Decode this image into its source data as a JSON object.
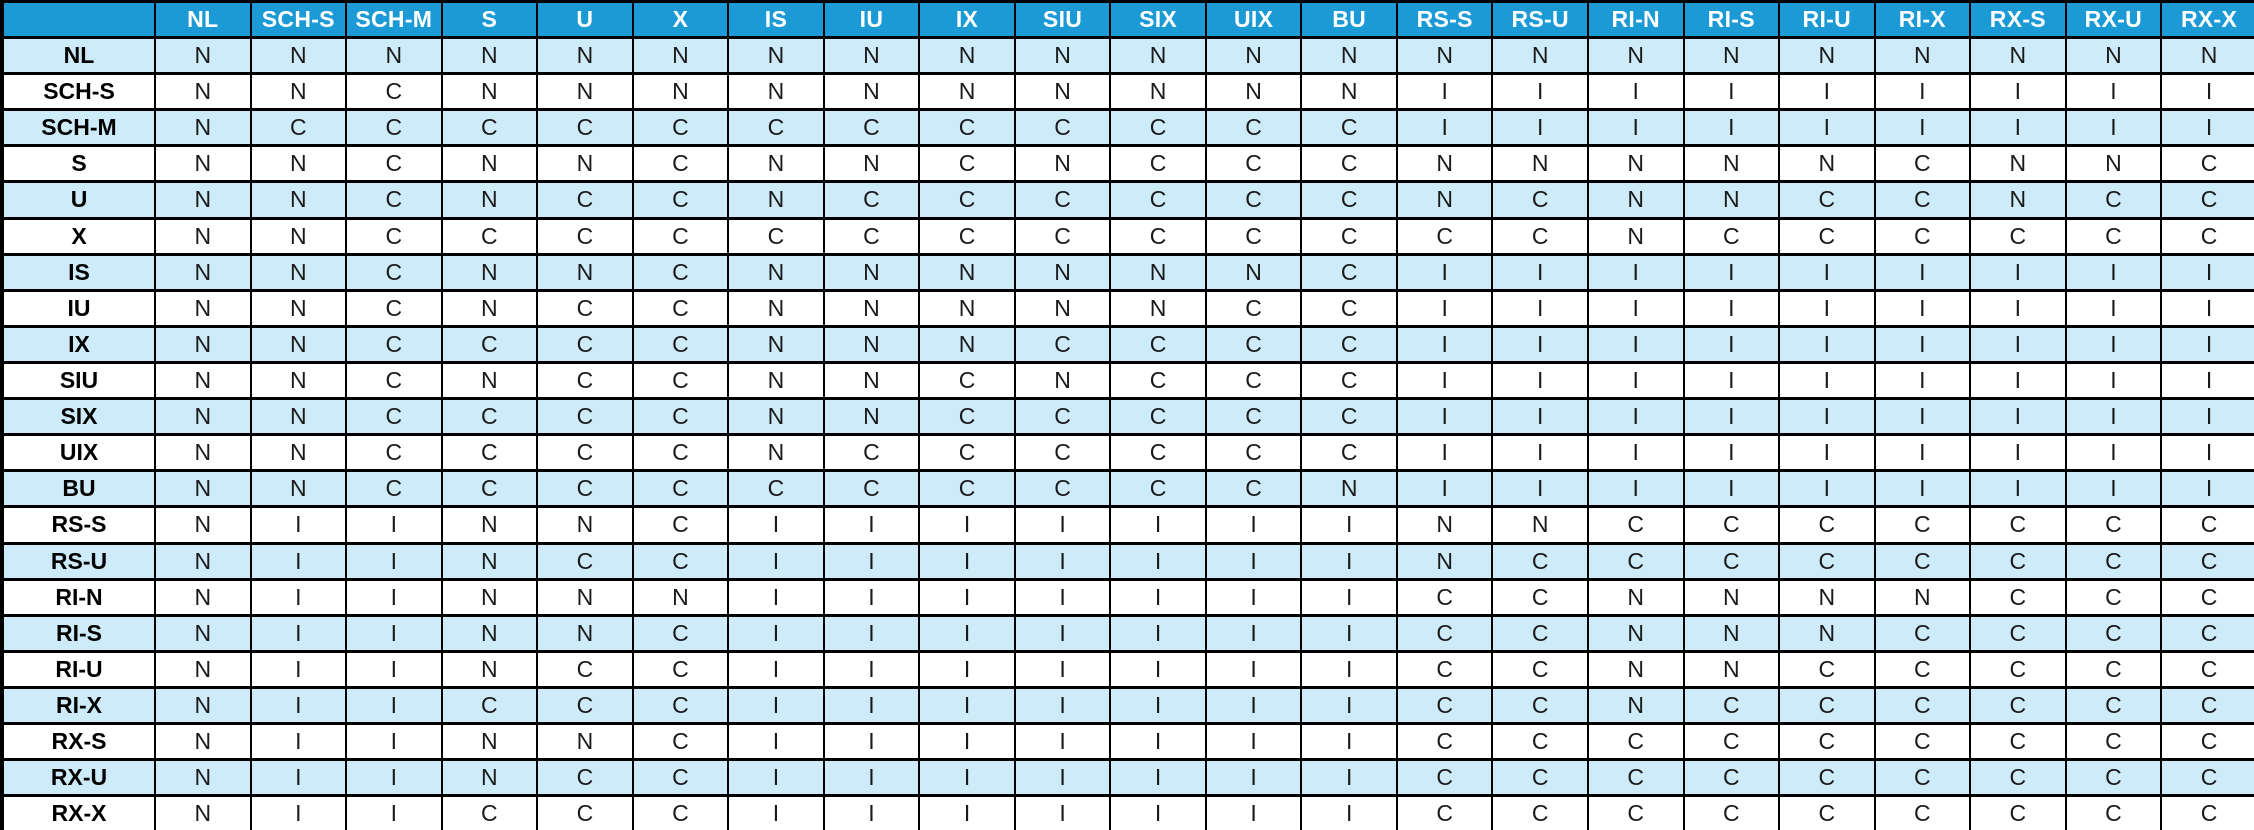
{
  "table": {
    "corner_label": "",
    "columns": [
      "NL",
      "SCH-S",
      "SCH-M",
      "S",
      "U",
      "X",
      "IS",
      "IU",
      "IX",
      "SIU",
      "SIX",
      "UIX",
      "BU",
      "RS-S",
      "RS-U",
      "RI-N",
      "RI-S",
      "RI-U",
      "RI-X",
      "RX-S",
      "RX-U",
      "RX-X"
    ],
    "rows": [
      {
        "label": "NL",
        "values": [
          "N",
          "N",
          "N",
          "N",
          "N",
          "N",
          "N",
          "N",
          "N",
          "N",
          "N",
          "N",
          "N",
          "N",
          "N",
          "N",
          "N",
          "N",
          "N",
          "N",
          "N",
          "N"
        ]
      },
      {
        "label": "SCH-S",
        "values": [
          "N",
          "N",
          "C",
          "N",
          "N",
          "N",
          "N",
          "N",
          "N",
          "N",
          "N",
          "N",
          "N",
          "I",
          "I",
          "I",
          "I",
          "I",
          "I",
          "I",
          "I",
          "I"
        ]
      },
      {
        "label": "SCH-M",
        "values": [
          "N",
          "C",
          "C",
          "C",
          "C",
          "C",
          "C",
          "C",
          "C",
          "C",
          "C",
          "C",
          "C",
          "I",
          "I",
          "I",
          "I",
          "I",
          "I",
          "I",
          "I",
          "I"
        ]
      },
      {
        "label": "S",
        "values": [
          "N",
          "N",
          "C",
          "N",
          "N",
          "C",
          "N",
          "N",
          "C",
          "N",
          "C",
          "C",
          "C",
          "N",
          "N",
          "N",
          "N",
          "N",
          "C",
          "N",
          "N",
          "C"
        ]
      },
      {
        "label": "U",
        "values": [
          "N",
          "N",
          "C",
          "N",
          "C",
          "C",
          "N",
          "C",
          "C",
          "C",
          "C",
          "C",
          "C",
          "N",
          "C",
          "N",
          "N",
          "C",
          "C",
          "N",
          "C",
          "C"
        ]
      },
      {
        "label": "X",
        "values": [
          "N",
          "N",
          "C",
          "C",
          "C",
          "C",
          "C",
          "C",
          "C",
          "C",
          "C",
          "C",
          "C",
          "C",
          "C",
          "N",
          "C",
          "C",
          "C",
          "C",
          "C",
          "C"
        ]
      },
      {
        "label": "IS",
        "values": [
          "N",
          "N",
          "C",
          "N",
          "N",
          "C",
          "N",
          "N",
          "N",
          "N",
          "N",
          "N",
          "C",
          "I",
          "I",
          "I",
          "I",
          "I",
          "I",
          "I",
          "I",
          "I"
        ]
      },
      {
        "label": "IU",
        "values": [
          "N",
          "N",
          "C",
          "N",
          "C",
          "C",
          "N",
          "N",
          "N",
          "N",
          "N",
          "C",
          "C",
          "I",
          "I",
          "I",
          "I",
          "I",
          "I",
          "I",
          "I",
          "I"
        ]
      },
      {
        "label": "IX",
        "values": [
          "N",
          "N",
          "C",
          "C",
          "C",
          "C",
          "N",
          "N",
          "N",
          "C",
          "C",
          "C",
          "C",
          "I",
          "I",
          "I",
          "I",
          "I",
          "I",
          "I",
          "I",
          "I"
        ]
      },
      {
        "label": "SIU",
        "values": [
          "N",
          "N",
          "C",
          "N",
          "C",
          "C",
          "N",
          "N",
          "C",
          "N",
          "C",
          "C",
          "C",
          "I",
          "I",
          "I",
          "I",
          "I",
          "I",
          "I",
          "I",
          "I"
        ]
      },
      {
        "label": "SIX",
        "values": [
          "N",
          "N",
          "C",
          "C",
          "C",
          "C",
          "N",
          "N",
          "C",
          "C",
          "C",
          "C",
          "C",
          "I",
          "I",
          "I",
          "I",
          "I",
          "I",
          "I",
          "I",
          "I"
        ]
      },
      {
        "label": "UIX",
        "values": [
          "N",
          "N",
          "C",
          "C",
          "C",
          "C",
          "N",
          "C",
          "C",
          "C",
          "C",
          "C",
          "C",
          "I",
          "I",
          "I",
          "I",
          "I",
          "I",
          "I",
          "I",
          "I"
        ]
      },
      {
        "label": "BU",
        "values": [
          "N",
          "N",
          "C",
          "C",
          "C",
          "C",
          "C",
          "C",
          "C",
          "C",
          "C",
          "C",
          "N",
          "I",
          "I",
          "I",
          "I",
          "I",
          "I",
          "I",
          "I",
          "I"
        ]
      },
      {
        "label": "RS-S",
        "values": [
          "N",
          "I",
          "I",
          "N",
          "N",
          "C",
          "I",
          "I",
          "I",
          "I",
          "I",
          "I",
          "I",
          "N",
          "N",
          "C",
          "C",
          "C",
          "C",
          "C",
          "C",
          "C"
        ]
      },
      {
        "label": "RS-U",
        "values": [
          "N",
          "I",
          "I",
          "N",
          "C",
          "C",
          "I",
          "I",
          "I",
          "I",
          "I",
          "I",
          "I",
          "N",
          "C",
          "C",
          "C",
          "C",
          "C",
          "C",
          "C",
          "C"
        ]
      },
      {
        "label": "RI-N",
        "values": [
          "N",
          "I",
          "I",
          "N",
          "N",
          "N",
          "I",
          "I",
          "I",
          "I",
          "I",
          "I",
          "I",
          "C",
          "C",
          "N",
          "N",
          "N",
          "N",
          "C",
          "C",
          "C"
        ]
      },
      {
        "label": "RI-S",
        "values": [
          "N",
          "I",
          "I",
          "N",
          "N",
          "C",
          "I",
          "I",
          "I",
          "I",
          "I",
          "I",
          "I",
          "C",
          "C",
          "N",
          "N",
          "N",
          "C",
          "C",
          "C",
          "C"
        ]
      },
      {
        "label": "RI-U",
        "values": [
          "N",
          "I",
          "I",
          "N",
          "C",
          "C",
          "I",
          "I",
          "I",
          "I",
          "I",
          "I",
          "I",
          "C",
          "C",
          "N",
          "N",
          "C",
          "C",
          "C",
          "C",
          "C"
        ]
      },
      {
        "label": "RI-X",
        "values": [
          "N",
          "I",
          "I",
          "C",
          "C",
          "C",
          "I",
          "I",
          "I",
          "I",
          "I",
          "I",
          "I",
          "C",
          "C",
          "N",
          "C",
          "C",
          "C",
          "C",
          "C",
          "C"
        ]
      },
      {
        "label": "RX-S",
        "values": [
          "N",
          "I",
          "I",
          "N",
          "N",
          "C",
          "I",
          "I",
          "I",
          "I",
          "I",
          "I",
          "I",
          "C",
          "C",
          "C",
          "C",
          "C",
          "C",
          "C",
          "C",
          "C"
        ]
      },
      {
        "label": "RX-U",
        "values": [
          "N",
          "I",
          "I",
          "N",
          "C",
          "C",
          "I",
          "I",
          "I",
          "I",
          "I",
          "I",
          "I",
          "C",
          "C",
          "C",
          "C",
          "C",
          "C",
          "C",
          "C",
          "C"
        ]
      },
      {
        "label": "RX-X",
        "values": [
          "N",
          "I",
          "I",
          "C",
          "C",
          "C",
          "I",
          "I",
          "I",
          "I",
          "I",
          "I",
          "I",
          "C",
          "C",
          "C",
          "C",
          "C",
          "C",
          "C",
          "C",
          "C"
        ]
      }
    ]
  },
  "colors": {
    "header_bg": "#1B9AD5",
    "row_alt_bg": "#CEEBFA",
    "row_bg": "#FFFFFF",
    "grid_border": "#000000",
    "header_text": "#FFFFFF",
    "cell_text": "#1A1A1A"
  }
}
